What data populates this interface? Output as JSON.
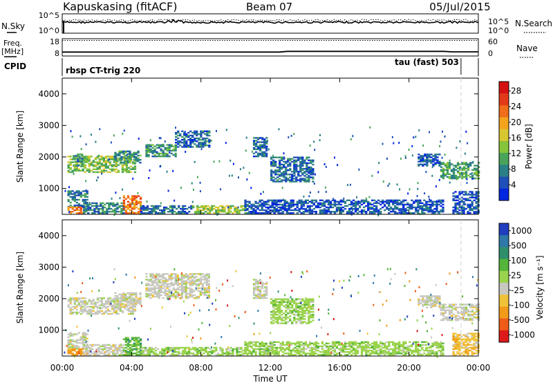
{
  "header": {
    "station": "Kapuskasing (fitACF)",
    "beam": "Beam 07",
    "date": "05/Jul/2015"
  },
  "chart_data": [
    {
      "type": "line",
      "id": "noise",
      "label_left": "N.Sky",
      "label_right": "N.Search",
      "left_ticks": [
        "10^5",
        "10^0"
      ],
      "right_ticks": [
        "10^5",
        "10^0"
      ],
      "line_style_sky": "solid",
      "line_style_search": "dotted"
    },
    {
      "type": "line",
      "id": "freq_nave",
      "label_left": "Freq.",
      "label_left_unit": "[MHz]",
      "label_right": "Nave",
      "left_ticks": [
        "18",
        "8"
      ],
      "right_ticks": [
        "60",
        "0"
      ],
      "freq_mhz": 10.3,
      "nave_level": 54
    },
    {
      "type": "table",
      "id": "cpid",
      "label": "CPID",
      "segments": [
        {
          "name": "rbsp CT-trig 220",
          "start_hour": 0.0,
          "end_hour": 23.0
        },
        {
          "name": "tau (fast) 503",
          "start_hour": 23.0,
          "end_hour": 24.0
        }
      ]
    },
    {
      "type": "heatmap",
      "id": "power",
      "ylabel": "Slant Range [km]",
      "ylim": [
        180,
        4500
      ],
      "y_ticks": [
        1000,
        2000,
        3000,
        4000
      ],
      "colorbar_label": "Power [dB]",
      "colorbar_ticks": [
        "4",
        "8",
        "12",
        "16",
        "20",
        "24",
        "28"
      ],
      "colorbar_range": [
        0,
        30
      ],
      "colors": [
        "#0026e0",
        "#1f4fb8",
        "#2b7f86",
        "#49a45a",
        "#86c43a",
        "#d8c630",
        "#f3a41c",
        "#f06d1a",
        "#e23a18",
        "#d41212"
      ],
      "regions": [
        {
          "t0": 0.3,
          "t1": 4.2,
          "r0": 1500,
          "r1": 2000,
          "v": 13
        },
        {
          "t0": 0.6,
          "t1": 1.2,
          "r0": 1700,
          "r1": 2100,
          "v": 8
        },
        {
          "t0": 3.0,
          "t1": 4.5,
          "r0": 1800,
          "r1": 2200,
          "v": 9
        },
        {
          "t0": 4.8,
          "t1": 6.5,
          "r0": 2000,
          "r1": 2400,
          "v": 9
        },
        {
          "t0": 6.5,
          "t1": 8.5,
          "r0": 2300,
          "r1": 2800,
          "v": 6
        },
        {
          "t0": 11.0,
          "t1": 11.8,
          "r0": 2000,
          "r1": 2600,
          "v": 6
        },
        {
          "t0": 12.0,
          "t1": 14.5,
          "r0": 1200,
          "r1": 2000,
          "v": 6
        },
        {
          "t0": 0.3,
          "t1": 1.5,
          "r0": 400,
          "r1": 900,
          "v": 7
        },
        {
          "t0": 0.3,
          "t1": 1.2,
          "r0": 200,
          "r1": 400,
          "v": 22
        },
        {
          "t0": 1.2,
          "t1": 3.5,
          "r0": 200,
          "r1": 550,
          "v": 8
        },
        {
          "t0": 3.5,
          "t1": 4.5,
          "r0": 200,
          "r1": 750,
          "v": 22
        },
        {
          "t0": 4.5,
          "t1": 7.5,
          "r0": 200,
          "r1": 450,
          "v": 6
        },
        {
          "t0": 7.5,
          "t1": 10.5,
          "r0": 200,
          "r1": 450,
          "v": 14
        },
        {
          "t0": 10.5,
          "t1": 22.0,
          "r0": 200,
          "r1": 650,
          "v": 5
        },
        {
          "t0": 21.8,
          "t1": 24.0,
          "r0": 1300,
          "r1": 1800,
          "v": 10
        },
        {
          "t0": 20.5,
          "t1": 21.8,
          "r0": 1700,
          "r1": 2100,
          "v": 5
        },
        {
          "t0": 22.5,
          "t1": 24.0,
          "r0": 200,
          "r1": 900,
          "v": 4
        }
      ]
    },
    {
      "type": "heatmap",
      "id": "velocity",
      "ylabel": "Slant Range [km]",
      "ylim": [
        180,
        4500
      ],
      "y_ticks": [
        1000,
        2000,
        3000,
        4000
      ],
      "xlabel": "Time UT",
      "x_tick_labels": [
        "00:00",
        "04:00",
        "08:00",
        "12:00",
        "16:00",
        "20:00",
        "00:00"
      ],
      "colorbar_label": "Velocity [m s⁻¹]",
      "colorbar_ticks": [
        "1000",
        "500",
        "100",
        "25",
        "-25",
        "-100",
        "-500",
        "-1000"
      ],
      "colors": [
        "#1f3fbf",
        "#2f78a8",
        "#2f8f6a",
        "#55b43a",
        "#9ad34c",
        "#c8c8c0",
        "#f0c23a",
        "#f29a1a",
        "#ee5c18",
        "#dd1a1a"
      ],
      "regions": [
        {
          "t0": 0.3,
          "t1": 4.2,
          "r0": 1500,
          "r1": 2000,
          "c": 5
        },
        {
          "t0": 3.0,
          "t1": 4.5,
          "r0": 1800,
          "r1": 2200,
          "c": 5
        },
        {
          "t0": 4.8,
          "t1": 8.5,
          "r0": 2000,
          "r1": 2800,
          "c": 5
        },
        {
          "t0": 11.0,
          "t1": 11.8,
          "r0": 2000,
          "r1": 2600,
          "c": 5
        },
        {
          "t0": 12.0,
          "t1": 14.5,
          "r0": 1200,
          "r1": 2000,
          "c": 4
        },
        {
          "t0": 0.3,
          "t1": 1.5,
          "r0": 400,
          "r1": 900,
          "c": 5
        },
        {
          "t0": 0.3,
          "t1": 1.2,
          "r0": 200,
          "r1": 400,
          "c": 7
        },
        {
          "t0": 1.2,
          "t1": 3.5,
          "r0": 200,
          "r1": 550,
          "c": 5
        },
        {
          "t0": 3.5,
          "t1": 4.5,
          "r0": 200,
          "r1": 750,
          "c": 3
        },
        {
          "t0": 4.5,
          "t1": 10.5,
          "r0": 200,
          "r1": 450,
          "c": 4
        },
        {
          "t0": 10.5,
          "t1": 22.0,
          "r0": 200,
          "r1": 650,
          "c": 4
        },
        {
          "t0": 21.8,
          "t1": 24.0,
          "r0": 1300,
          "r1": 1800,
          "c": 5
        },
        {
          "t0": 20.5,
          "t1": 21.8,
          "r0": 1700,
          "r1": 2100,
          "c": 5
        },
        {
          "t0": 22.5,
          "t1": 24.0,
          "r0": 200,
          "r1": 900,
          "c": 6
        }
      ]
    }
  ]
}
